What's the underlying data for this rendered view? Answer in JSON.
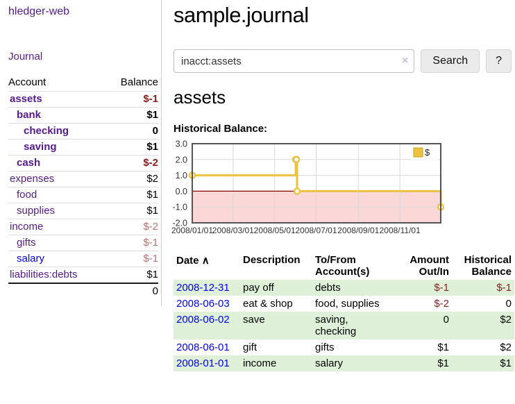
{
  "sidebar": {
    "app_title": "hledger-web",
    "journal_link": "Journal",
    "accounts_header": {
      "account": "Account",
      "balance": "Balance"
    },
    "accounts": [
      {
        "name": "assets",
        "balance": "$-1"
      },
      {
        "name": "bank",
        "balance": "$1"
      },
      {
        "name": "checking",
        "balance": "0"
      },
      {
        "name": "saving",
        "balance": "$1"
      },
      {
        "name": "cash",
        "balance": "$-2"
      },
      {
        "name": "expenses",
        "balance": "$2"
      },
      {
        "name": "food",
        "balance": "$1"
      },
      {
        "name": "supplies",
        "balance": "$1"
      },
      {
        "name": "income",
        "balance": "$-2"
      },
      {
        "name": "gifts",
        "balance": "$-1"
      },
      {
        "name": "salary",
        "balance": "$-1"
      },
      {
        "name": "liabilities:debts",
        "balance": "$1"
      }
    ],
    "total_balance": "0"
  },
  "main": {
    "title": "sample.journal",
    "search": {
      "value": "inacct:assets",
      "clear_icon": "×",
      "search_button": "Search",
      "help_button": "?"
    },
    "section_title": "assets",
    "chart_title": "Historical Balance:"
  },
  "chart_data": {
    "type": "line",
    "step": true,
    "title": "Historical Balance",
    "series": [
      {
        "name": "$",
        "points": [
          [
            "2008-01-01",
            1
          ],
          [
            "2008-06-01",
            2
          ],
          [
            "2008-06-02",
            2
          ],
          [
            "2008-06-03",
            0
          ],
          [
            "2008-12-31",
            -1
          ]
        ]
      }
    ],
    "xrange": [
      "2008-01-01",
      "2008-12-31"
    ],
    "ylim": [
      -2,
      3
    ],
    "yticks": [
      3.0,
      2.0,
      1.0,
      0.0,
      -1.0,
      -2.0
    ],
    "xticks": [
      {
        "date": "2008-01-01",
        "label": "2008/01/01"
      },
      {
        "date": "2008-03-01",
        "label": "2008/03/01"
      },
      {
        "date": "2008-05-01",
        "label": "2008/05/01"
      },
      {
        "date": "2008-07-01",
        "label": "2008/07/01"
      },
      {
        "date": "2008-09-01",
        "label": "2008/09/01"
      },
      {
        "date": "2008-11-01",
        "label": "2008/11/01"
      }
    ],
    "legend": {
      "label": "$",
      "position": "top-right"
    },
    "grid": true,
    "colors": {
      "line": "#edc240",
      "marker_fill": "#ffffff",
      "negative_fill": "#fbd8d8",
      "zero_line": "#8b0000",
      "grid": "#d9d9d9",
      "border": "#545454",
      "tick_text": "#333333"
    }
  },
  "register": {
    "headers": {
      "date": "Date",
      "sort_icon": "∧",
      "description": "Description",
      "accounts": "To/From Account(s)",
      "amount": "Amount Out/In",
      "balance": "Historical Balance"
    },
    "rows": [
      {
        "date": "2008-12-31",
        "description": "pay off",
        "accounts": "debts",
        "amount": "$-1",
        "balance": "$-1"
      },
      {
        "date": "2008-06-03",
        "description": "eat & shop",
        "accounts": "food, supplies",
        "amount": "$-2",
        "balance": "0"
      },
      {
        "date": "2008-06-02",
        "description": "save",
        "accounts": "saving, checking",
        "amount": "0",
        "balance": "$2"
      },
      {
        "date": "2008-06-01",
        "description": "gift",
        "accounts": "gifts",
        "amount": "$1",
        "balance": "$2"
      },
      {
        "date": "2008-01-01",
        "description": "income",
        "accounts": "salary",
        "amount": "$1",
        "balance": "$1"
      }
    ]
  }
}
